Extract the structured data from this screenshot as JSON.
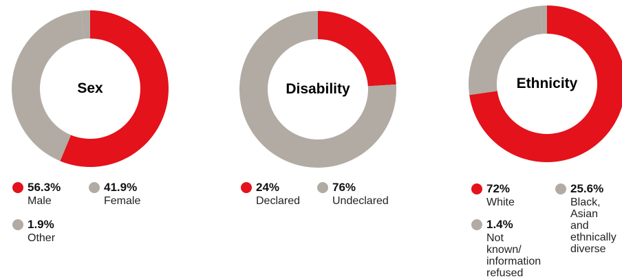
{
  "colors": {
    "red": "#e3121b",
    "grey": "#b1aba3"
  },
  "chart_data": [
    {
      "type": "pie",
      "title": "Sex",
      "slices": [
        {
          "pct": "56.3%",
          "value": 56.3,
          "label": "Male",
          "color": "#e3121b"
        },
        {
          "pct": "41.9%",
          "value": 41.9,
          "label": "Female",
          "color": "#b1aba3"
        },
        {
          "pct": "1.9%",
          "value": 1.9,
          "label": "Other",
          "color": "#b1aba3"
        }
      ]
    },
    {
      "type": "pie",
      "title": "Disability",
      "slices": [
        {
          "pct": "24%",
          "value": 24,
          "label": "Declared",
          "color": "#e3121b"
        },
        {
          "pct": "76%",
          "value": 76,
          "label": "Undeclared",
          "color": "#b1aba3"
        }
      ]
    },
    {
      "type": "pie",
      "title": "Ethnicity",
      "slices": [
        {
          "pct": "72%",
          "value": 72,
          "label": "White",
          "color": "#e3121b"
        },
        {
          "pct": "25.6%",
          "value": 25.6,
          "label": "Black,\nAsian and\nethnically\ndiverse",
          "color": "#b1aba3"
        },
        {
          "pct": "1.4%",
          "value": 1.4,
          "label": "Not known/\ninformation\nrefused",
          "color": "#b1aba3"
        }
      ]
    }
  ]
}
